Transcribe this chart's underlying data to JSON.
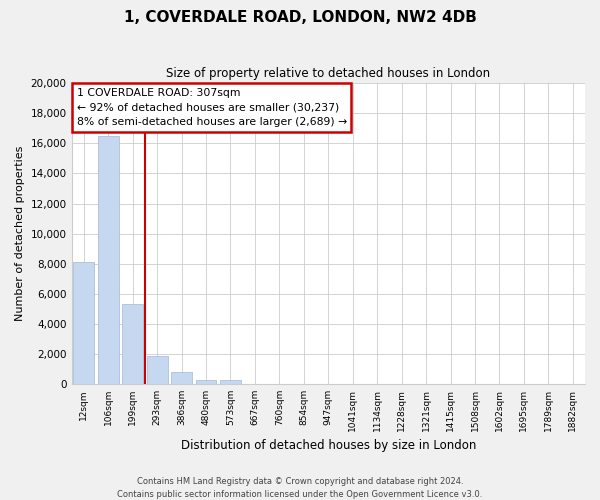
{
  "title": "1, COVERDALE ROAD, LONDON, NW2 4DB",
  "subtitle": "Size of property relative to detached houses in London",
  "xlabel": "Distribution of detached houses by size in London",
  "ylabel": "Number of detached properties",
  "bar_labels": [
    "12sqm",
    "106sqm",
    "199sqm",
    "293sqm",
    "386sqm",
    "480sqm",
    "573sqm",
    "667sqm",
    "760sqm",
    "854sqm",
    "947sqm",
    "1041sqm",
    "1134sqm",
    "1228sqm",
    "1321sqm",
    "1415sqm",
    "1508sqm",
    "1602sqm",
    "1695sqm",
    "1789sqm",
    "1882sqm"
  ],
  "bar_values": [
    8100,
    16500,
    5300,
    1850,
    800,
    300,
    250,
    0,
    0,
    0,
    0,
    0,
    0,
    0,
    0,
    0,
    0,
    0,
    0,
    0,
    0
  ],
  "bar_color": "#c5d8f0",
  "bar_edge_color": "#a0b8d8",
  "vline_index": 2.5,
  "annotation_title": "1 COVERDALE ROAD: 307sqm",
  "annotation_line1": "← 92% of detached houses are smaller (30,237)",
  "annotation_line2": "8% of semi-detached houses are larger (2,689) →",
  "vline_color": "#cc0000",
  "annotation_box_edgecolor": "#cc0000",
  "ylim": [
    0,
    20000
  ],
  "yticks": [
    0,
    2000,
    4000,
    6000,
    8000,
    10000,
    12000,
    14000,
    16000,
    18000,
    20000
  ],
  "footer1": "Contains HM Land Registry data © Crown copyright and database right 2024.",
  "footer2": "Contains public sector information licensed under the Open Government Licence v3.0.",
  "bg_color": "#f0f0f0",
  "plot_bg_color": "#ffffff"
}
